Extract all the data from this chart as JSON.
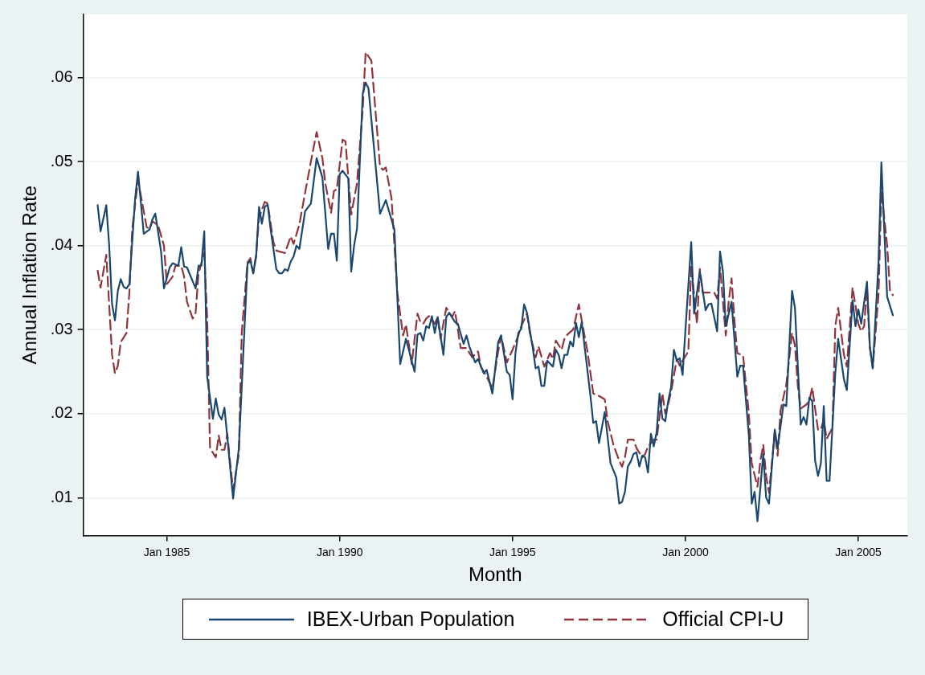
{
  "chart_data": {
    "type": "line",
    "xlabel": "Month",
    "ylabel": "Annual Inflation Rate",
    "xlim": [
      "1982-08",
      "2006-06"
    ],
    "ylim": [
      0.0055,
      0.0675
    ],
    "xticks": [
      {
        "value": "1985-01",
        "label": "Jan 1985"
      },
      {
        "value": "1990-01",
        "label": "Jan 1990"
      },
      {
        "value": "1995-01",
        "label": "Jan 1995"
      },
      {
        "value": "2000-01",
        "label": "Jan 2000"
      },
      {
        "value": "2005-01",
        "label": "Jan 2005"
      }
    ],
    "yticks": [
      {
        "value": 0.01,
        "label": ".01"
      },
      {
        "value": 0.02,
        "label": ".02"
      },
      {
        "value": 0.03,
        "label": ".03"
      },
      {
        "value": 0.04,
        "label": ".04"
      },
      {
        "value": 0.05,
        "label": ".05"
      },
      {
        "value": 0.06,
        "label": ".06"
      }
    ],
    "grid": "y",
    "legend": "bottom",
    "marker": "none",
    "series": [
      {
        "name": "IBEX-Urban Population",
        "color": "#1a476f",
        "line_style": "solid",
        "x": [
          "1983-01",
          "1983-02",
          "1983-04",
          "1983-05",
          "1983-06",
          "1983-07",
          "1983-08",
          "1983-09",
          "1983-10",
          "1983-11",
          "1983-12",
          "1984-02",
          "1984-03",
          "1984-05",
          "1984-07",
          "1984-08",
          "1984-09",
          "1984-11",
          "1984-12",
          "1985-02",
          "1985-03",
          "1985-05",
          "1985-06",
          "1985-07",
          "1985-08",
          "1985-11",
          "1985-12",
          "1986-01",
          "1986-02",
          "1986-03",
          "1986-05",
          "1986-06",
          "1986-07",
          "1986-08",
          "1986-09",
          "1986-10",
          "1986-12",
          "1987-02",
          "1987-05",
          "1987-06",
          "1987-07",
          "1987-08",
          "1987-09",
          "1987-10",
          "1987-11",
          "1987-12",
          "1988-01",
          "1988-03",
          "1988-04",
          "1988-05",
          "1988-06",
          "1988-07",
          "1988-08",
          "1988-09",
          "1988-10",
          "1988-11",
          "1989-01",
          "1989-03",
          "1989-05",
          "1989-07",
          "1989-09",
          "1989-10",
          "1989-11",
          "1989-12",
          "1990-01",
          "1990-02",
          "1990-04",
          "1990-05",
          "1990-06",
          "1990-07",
          "1990-09",
          "1990-10",
          "1990-11",
          "1991-03",
          "1991-05",
          "1991-08",
          "1991-10",
          "1991-12",
          "1992-03",
          "1992-04",
          "1992-05",
          "1992-06",
          "1992-07",
          "1992-08",
          "1992-09",
          "1992-10",
          "1992-11",
          "1993-01",
          "1993-02",
          "1993-03",
          "1993-05",
          "1993-06",
          "1993-08",
          "1993-09",
          "1993-10",
          "1993-12",
          "1994-01",
          "1994-03",
          "1994-04",
          "1994-06",
          "1994-08",
          "1994-09",
          "1994-11",
          "1994-12",
          "1995-01",
          "1995-02",
          "1995-03",
          "1995-04",
          "1995-05",
          "1995-06",
          "1995-08",
          "1995-09",
          "1995-10",
          "1995-11",
          "1995-12",
          "1996-01",
          "1996-03",
          "1996-04",
          "1996-05",
          "1996-06",
          "1996-07",
          "1996-08",
          "1996-09",
          "1996-10",
          "1996-11",
          "1996-12",
          "1997-01",
          "1997-04",
          "1997-05",
          "1997-06",
          "1997-07",
          "1997-09",
          "1997-11",
          "1998-01",
          "1998-02",
          "1998-03",
          "1998-04",
          "1998-05",
          "1998-06",
          "1998-07",
          "1998-08",
          "1998-09",
          "1998-10",
          "1998-11",
          "1998-12",
          "1999-01",
          "1999-02",
          "1999-03",
          "1999-04",
          "1999-05",
          "1999-06",
          "1999-07",
          "1999-08",
          "1999-09",
          "1999-10",
          "1999-11",
          "1999-12",
          "2000-01",
          "2000-03",
          "2000-04",
          "2000-06",
          "2000-08",
          "2000-09",
          "2000-10",
          "2000-12",
          "2001-01",
          "2001-02",
          "2001-03",
          "2001-05",
          "2001-07",
          "2001-08",
          "2001-09",
          "2001-11",
          "2001-12",
          "2002-01",
          "2002-02",
          "2002-04",
          "2002-05",
          "2002-06",
          "2002-08",
          "2002-09",
          "2002-11",
          "2002-12",
          "2003-02",
          "2003-03",
          "2003-05",
          "2003-06",
          "2003-07",
          "2003-08",
          "2003-09",
          "2003-10",
          "2003-11",
          "2003-12",
          "2004-01",
          "2004-02",
          "2004-03",
          "2004-05",
          "2004-06",
          "2004-08",
          "2004-09",
          "2004-11",
          "2004-12",
          "2005-01",
          "2005-02",
          "2005-04",
          "2005-05",
          "2005-06",
          "2005-08",
          "2005-09",
          "2005-11",
          "2006-01"
        ],
        "values": [
          0.0448,
          0.0417,
          0.0448,
          0.04,
          0.033,
          0.0311,
          0.0346,
          0.036,
          0.0351,
          0.0349,
          0.0354,
          0.0456,
          0.0488,
          0.0414,
          0.0419,
          0.0431,
          0.0438,
          0.0393,
          0.0349,
          0.0374,
          0.0379,
          0.0376,
          0.0398,
          0.0375,
          0.0374,
          0.0349,
          0.0376,
          0.0376,
          0.0417,
          0.0244,
          0.0194,
          0.0218,
          0.0199,
          0.0193,
          0.0207,
          0.0172,
          0.0099,
          0.0159,
          0.0378,
          0.0382,
          0.0367,
          0.0387,
          0.0446,
          0.0426,
          0.0446,
          0.0449,
          0.042,
          0.0372,
          0.0367,
          0.0367,
          0.0372,
          0.037,
          0.0381,
          0.0387,
          0.04,
          0.0396,
          0.0441,
          0.045,
          0.0504,
          0.0481,
          0.0396,
          0.0414,
          0.0414,
          0.0382,
          0.0485,
          0.0489,
          0.048,
          0.0369,
          0.04,
          0.042,
          0.0581,
          0.0594,
          0.0587,
          0.0438,
          0.0454,
          0.0419,
          0.0259,
          0.0289,
          0.025,
          0.0294,
          0.0296,
          0.0287,
          0.0304,
          0.0302,
          0.0316,
          0.0296,
          0.0315,
          0.027,
          0.0315,
          0.032,
          0.0309,
          0.0307,
          0.0283,
          0.0293,
          0.028,
          0.0261,
          0.0265,
          0.0248,
          0.0252,
          0.0224,
          0.0285,
          0.0293,
          0.025,
          0.0246,
          0.0217,
          0.0272,
          0.0296,
          0.0301,
          0.033,
          0.032,
          0.0278,
          0.0254,
          0.0256,
          0.0233,
          0.0233,
          0.0263,
          0.0256,
          0.0276,
          0.027,
          0.0254,
          0.027,
          0.027,
          0.0286,
          0.028,
          0.0308,
          0.0291,
          0.0309,
          0.0222,
          0.0189,
          0.0191,
          0.0165,
          0.0202,
          0.0141,
          0.0124,
          0.0093,
          0.0095,
          0.0107,
          0.0137,
          0.0143,
          0.0152,
          0.0154,
          0.0137,
          0.015,
          0.0148,
          0.013,
          0.0176,
          0.0161,
          0.0178,
          0.0224,
          0.0194,
          0.0191,
          0.0215,
          0.0231,
          0.0276,
          0.0263,
          0.0266,
          0.0246,
          0.03,
          0.0404,
          0.0319,
          0.0369,
          0.0323,
          0.033,
          0.0331,
          0.0298,
          0.0393,
          0.0369,
          0.0304,
          0.0333,
          0.0244,
          0.0257,
          0.0257,
          0.0174,
          0.0093,
          0.0107,
          0.0072,
          0.0152,
          0.01,
          0.0093,
          0.0181,
          0.0159,
          0.0211,
          0.0209,
          0.0346,
          0.0326,
          0.0187,
          0.0196,
          0.0187,
          0.0219,
          0.0215,
          0.0144,
          0.0126,
          0.0141,
          0.0209,
          0.012,
          0.012,
          0.0248,
          0.0289,
          0.0241,
          0.0228,
          0.0335,
          0.0304,
          0.0324,
          0.0307,
          0.0357,
          0.028,
          0.0254,
          0.038,
          0.0499,
          0.0339,
          0.0317
        ]
      },
      {
        "name": "Official CPI-U",
        "color": "#90353b",
        "line_style": "dashed",
        "x": [
          "1983-01",
          "1983-02",
          "1983-04",
          "1983-06",
          "1983-07",
          "1983-08",
          "1983-09",
          "1983-11",
          "1983-12",
          "1984-01",
          "1984-03",
          "1984-06",
          "1984-07",
          "1984-08",
          "1984-10",
          "1984-12",
          "1985-01",
          "1985-03",
          "1985-04",
          "1985-06",
          "1985-07",
          "1985-08",
          "1985-10",
          "1985-11",
          "1985-12",
          "1986-02",
          "1986-03",
          "1986-04",
          "1986-06",
          "1986-07",
          "1986-08",
          "1986-09",
          "1986-10",
          "1986-11",
          "1986-12",
          "1987-02",
          "1987-03",
          "1987-05",
          "1987-06",
          "1987-07",
          "1987-08",
          "1987-09",
          "1987-11",
          "1987-12",
          "1988-02",
          "1988-03",
          "1988-06",
          "1988-08",
          "1988-09",
          "1988-11",
          "1989-01",
          "1989-03",
          "1989-05",
          "1989-07",
          "1989-08",
          "1989-10",
          "1989-11",
          "1989-12",
          "1990-02",
          "1990-03",
          "1990-05",
          "1990-07",
          "1990-09",
          "1990-10",
          "1990-12",
          "1991-01",
          "1991-03",
          "1991-04",
          "1991-05",
          "1991-07",
          "1991-09",
          "1991-11",
          "1991-12",
          "1992-02",
          "1992-04",
          "1992-05",
          "1992-06",
          "1992-07",
          "1992-08",
          "1992-10",
          "1992-11",
          "1992-12",
          "1993-02",
          "1993-04",
          "1993-05",
          "1993-07",
          "1993-09",
          "1993-11",
          "1994-01",
          "1994-02",
          "1994-04",
          "1994-06",
          "1994-08",
          "1994-09",
          "1994-11",
          "1995-01",
          "1995-03",
          "1995-04",
          "1995-06",
          "1995-07",
          "1995-09",
          "1995-10",
          "1995-12",
          "1996-02",
          "1996-03",
          "1996-04",
          "1996-06",
          "1996-07",
          "1996-08",
          "1996-10",
          "1996-11",
          "1996-12",
          "1997-01",
          "1997-03",
          "1997-05",
          "1997-07",
          "1997-09",
          "1997-10",
          "1997-12",
          "1998-02",
          "1998-03",
          "1998-04",
          "1998-05",
          "1998-07",
          "1998-08",
          "1998-10",
          "1998-11",
          "1998-12",
          "1999-02",
          "1999-03",
          "1999-05",
          "1999-06",
          "1999-07",
          "1999-08",
          "1999-10",
          "1999-11",
          "1999-12",
          "2000-02",
          "2000-03",
          "2000-05",
          "2000-06",
          "2000-07",
          "2000-09",
          "2000-11",
          "2000-12",
          "2001-01",
          "2001-03",
          "2001-04",
          "2001-05",
          "2001-06",
          "2001-07",
          "2001-09",
          "2001-11",
          "2001-12",
          "2002-02",
          "2002-03",
          "2002-04",
          "2002-05",
          "2002-06",
          "2002-08",
          "2002-09",
          "2002-10",
          "2002-12",
          "2003-02",
          "2003-03",
          "2003-04",
          "2003-05",
          "2003-07",
          "2003-08",
          "2003-09",
          "2003-11",
          "2003-12",
          "2004-01",
          "2004-02",
          "2004-04",
          "2004-05",
          "2004-06",
          "2004-08",
          "2004-09",
          "2004-11",
          "2005-01",
          "2005-02",
          "2005-03",
          "2005-04",
          "2005-05",
          "2005-06",
          "2005-08",
          "2005-09",
          "2005-11",
          "2005-12",
          "2006-01"
        ],
        "values": [
          0.037,
          0.035,
          0.0389,
          0.027,
          0.0248,
          0.0257,
          0.0285,
          0.0296,
          0.0344,
          0.042,
          0.0478,
          0.0422,
          0.042,
          0.0429,
          0.0424,
          0.04,
          0.0354,
          0.0363,
          0.0376,
          0.0376,
          0.0363,
          0.0333,
          0.0313,
          0.032,
          0.0367,
          0.0391,
          0.0315,
          0.0159,
          0.0148,
          0.0174,
          0.0157,
          0.0157,
          0.0176,
          0.0141,
          0.0109,
          0.0152,
          0.0296,
          0.038,
          0.0385,
          0.0367,
          0.0389,
          0.0433,
          0.0452,
          0.045,
          0.0404,
          0.0394,
          0.0391,
          0.0411,
          0.0402,
          0.0425,
          0.0463,
          0.05,
          0.0535,
          0.0504,
          0.0474,
          0.0439,
          0.0465,
          0.0467,
          0.0526,
          0.0524,
          0.0437,
          0.0474,
          0.0563,
          0.063,
          0.062,
          0.0578,
          0.0494,
          0.049,
          0.0493,
          0.0456,
          0.0344,
          0.0293,
          0.0306,
          0.0259,
          0.0319,
          0.0309,
          0.0307,
          0.0313,
          0.0316,
          0.0307,
          0.0315,
          0.0289,
          0.0326,
          0.0315,
          0.0322,
          0.0278,
          0.0278,
          0.0267,
          0.0274,
          0.0256,
          0.0244,
          0.023,
          0.0274,
          0.0293,
          0.0261,
          0.0276,
          0.0293,
          0.0304,
          0.0319,
          0.0296,
          0.0267,
          0.028,
          0.0256,
          0.0272,
          0.0265,
          0.0287,
          0.0276,
          0.0289,
          0.0294,
          0.03,
          0.0315,
          0.033,
          0.0311,
          0.0274,
          0.0224,
          0.0221,
          0.0217,
          0.0191,
          0.0163,
          0.0144,
          0.0137,
          0.0148,
          0.0169,
          0.0169,
          0.0159,
          0.0148,
          0.0152,
          0.0161,
          0.0169,
          0.0169,
          0.0224,
          0.02,
          0.0211,
          0.0226,
          0.0265,
          0.0257,
          0.0263,
          0.0274,
          0.0376,
          0.0307,
          0.0372,
          0.0344,
          0.0344,
          0.0344,
          0.0337,
          0.0374,
          0.0293,
          0.0333,
          0.0361,
          0.0311,
          0.0272,
          0.0269,
          0.02,
          0.0141,
          0.0113,
          0.0144,
          0.0163,
          0.0126,
          0.0106,
          0.0178,
          0.015,
          0.0204,
          0.0235,
          0.0296,
          0.0281,
          0.0233,
          0.0206,
          0.0211,
          0.0215,
          0.0231,
          0.0181,
          0.0181,
          0.0193,
          0.017,
          0.0183,
          0.0304,
          0.0326,
          0.027,
          0.0256,
          0.035,
          0.0307,
          0.0298,
          0.0304,
          0.035,
          0.0278,
          0.0254,
          0.0341,
          0.0465,
          0.04,
          0.0346,
          0.0341
        ]
      }
    ]
  }
}
